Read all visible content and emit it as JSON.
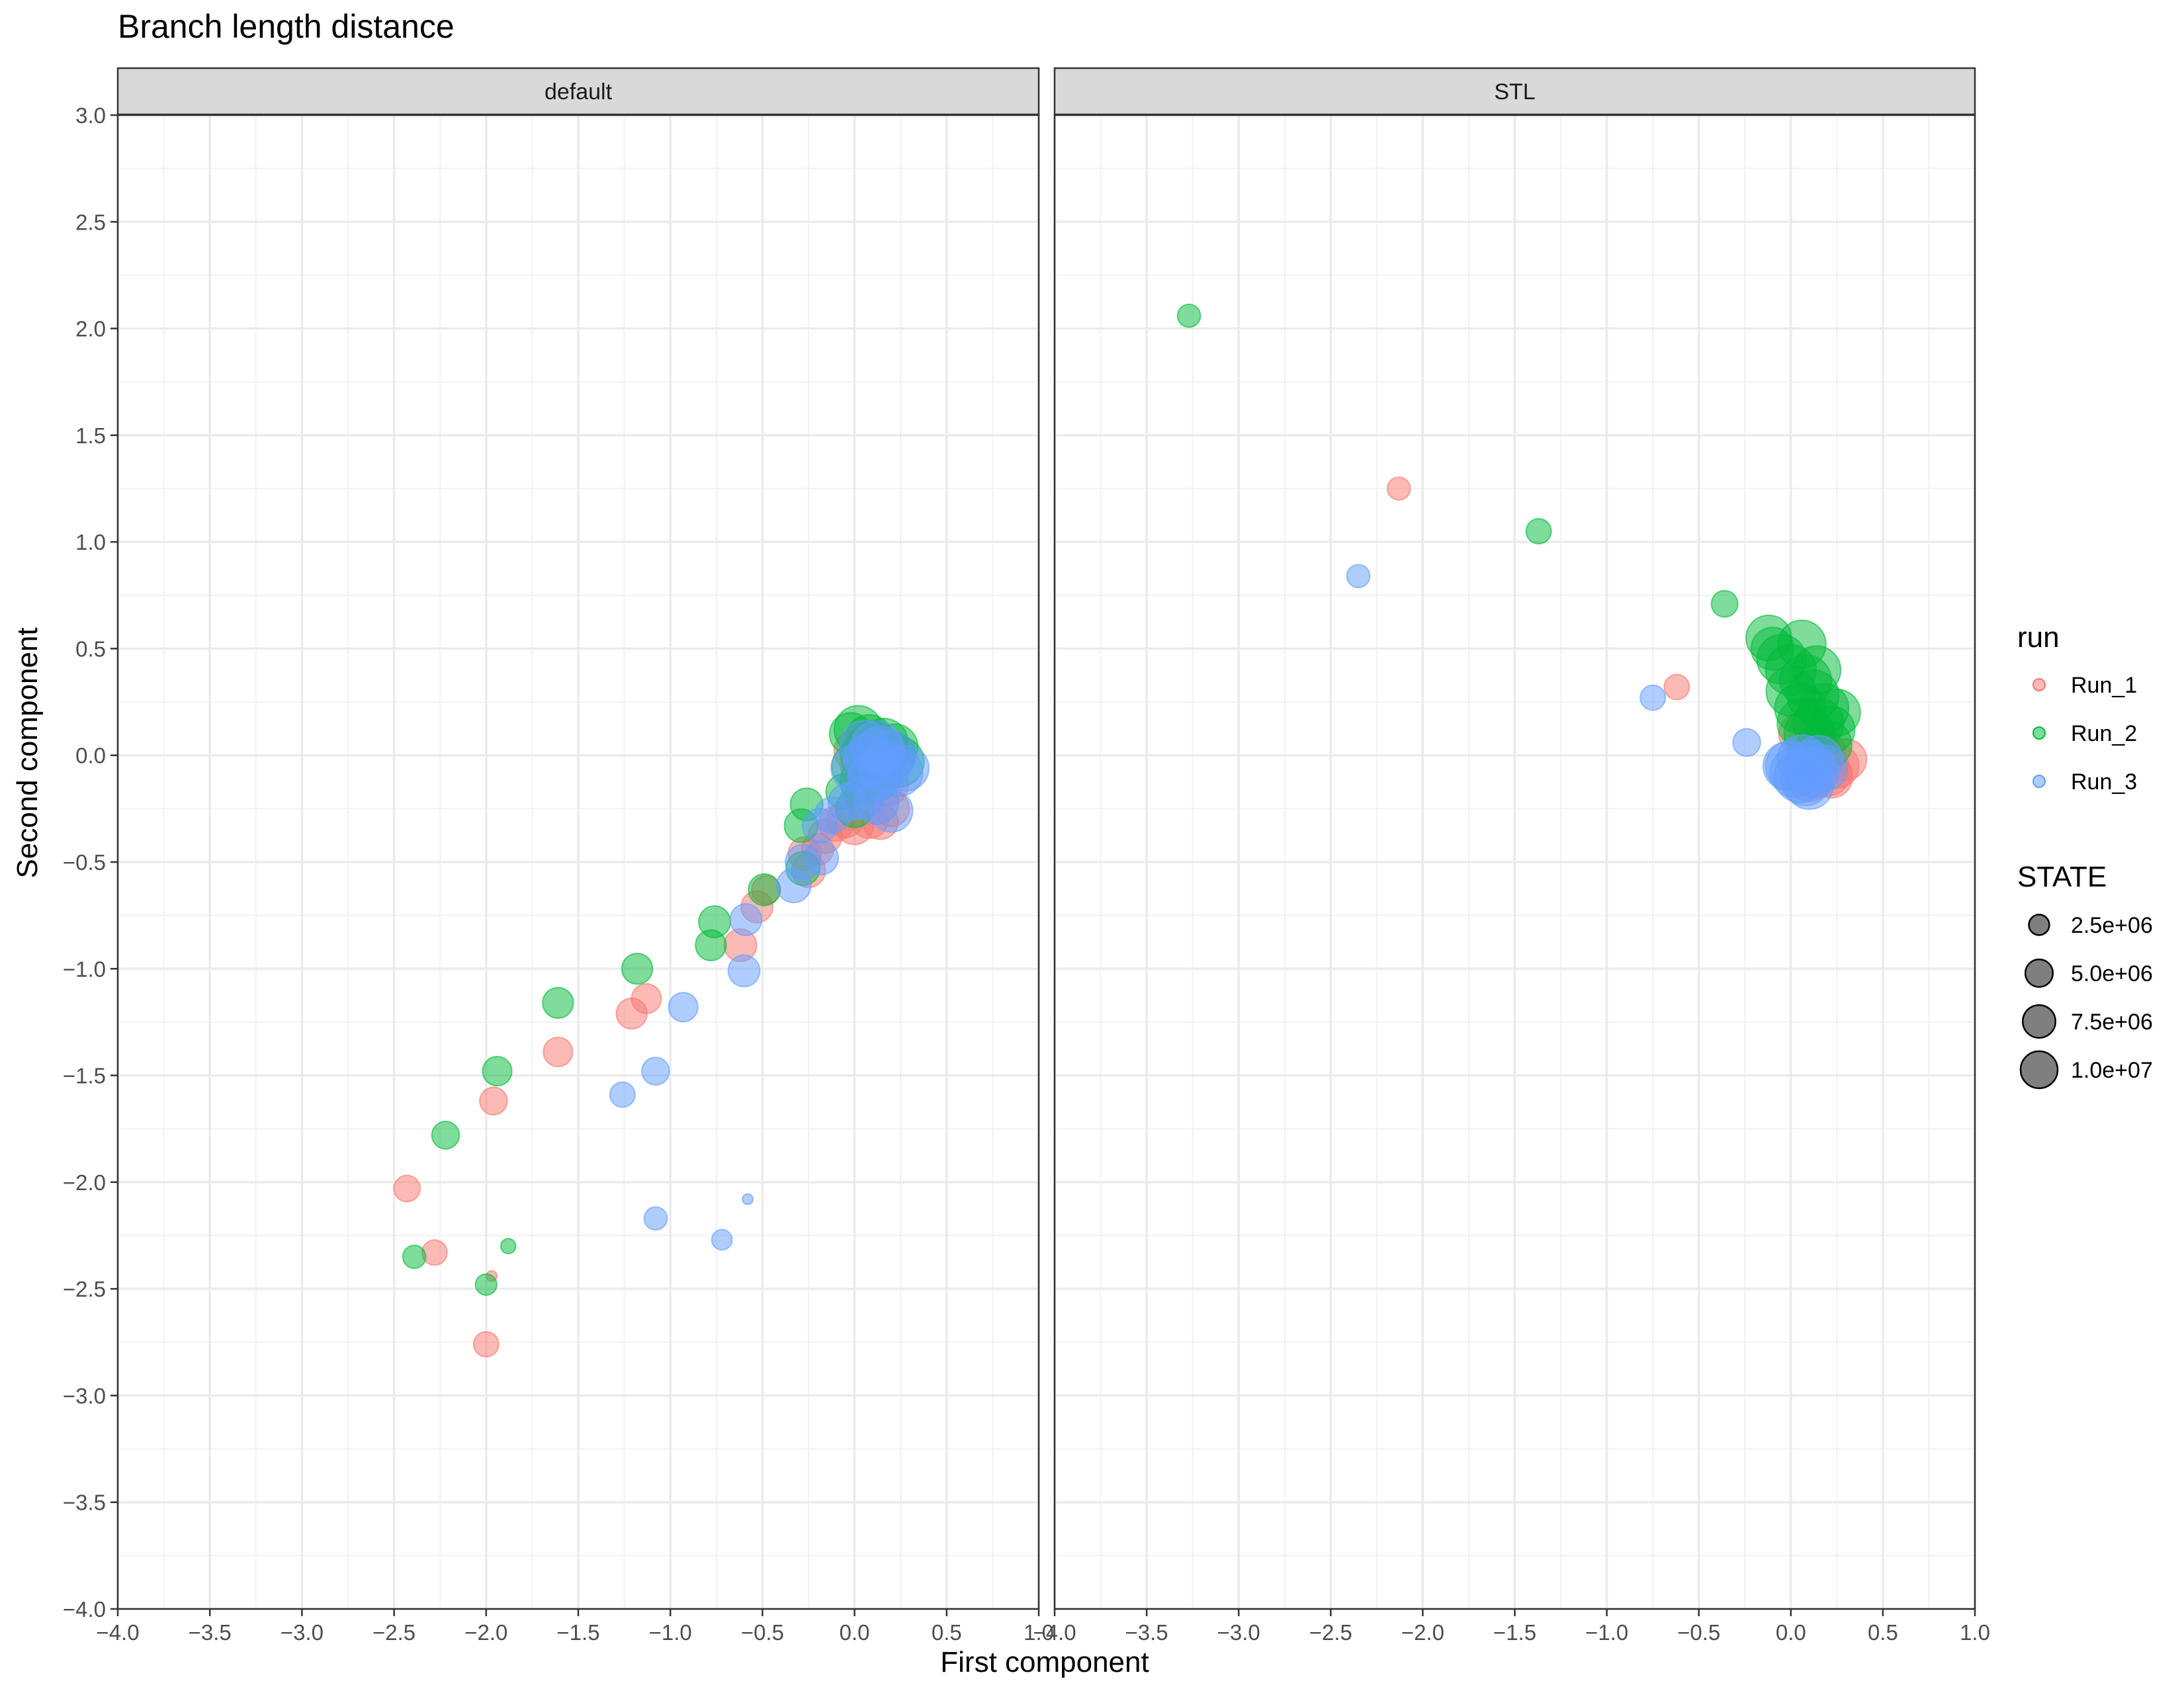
{
  "chart_data": {
    "type": "scatter",
    "title": "Branch length distance",
    "xlabel": "First component",
    "ylabel": "Second component",
    "xlim": [
      -4.0,
      1.0
    ],
    "ylim": [
      -4.0,
      3.0
    ],
    "x_ticks": [
      -4.0,
      -3.5,
      -3.0,
      -2.5,
      -2.0,
      -1.5,
      -1.0,
      -0.5,
      0.0,
      0.5,
      1.0
    ],
    "x_tick_labels": [
      "−4.0",
      "−3.5",
      "−3.0",
      "−2.5",
      "−2.0",
      "−1.5",
      "−1.0",
      "−0.5",
      "0.0",
      "0.5",
      "1.0"
    ],
    "y_ticks": [
      3.0,
      2.5,
      2.0,
      1.5,
      1.0,
      0.5,
      0.0,
      -0.5,
      -1.0,
      -1.5,
      -2.0,
      -2.5,
      -3.0,
      -3.5,
      -4.0
    ],
    "y_tick_labels": [
      "3.0",
      "2.5",
      "2.0",
      "1.5",
      "1.0",
      "0.5",
      "0.0",
      "−0.5",
      "−1.0",
      "−1.5",
      "−2.0",
      "−2.5",
      "−3.0",
      "−3.5",
      "−4.0"
    ],
    "grid": true,
    "colors": {
      "Run_1": "#F8766D",
      "Run_2": "#00BA38",
      "Run_3": "#619CFF"
    },
    "legend": {
      "run": {
        "title": "run",
        "entries": [
          "Run_1",
          "Run_2",
          "Run_3"
        ]
      },
      "size": {
        "title": "STATE",
        "values": [
          2500000,
          5000000,
          7500000,
          10000000
        ],
        "labels": [
          "2.5e+06",
          "5.0e+06",
          "7.5e+06",
          "1.0e+07"
        ]
      },
      "placement": "right"
    },
    "facets": [
      {
        "label": "default",
        "series": [
          {
            "name": "Run_1",
            "points": [
              [
                -2.43,
                -2.03,
                2000000
              ],
              [
                -2.28,
                -2.33,
                1800000
              ],
              [
                -1.97,
                -2.44,
                700000
              ],
              [
                -2.0,
                -2.76,
                1800000
              ],
              [
                -1.96,
                -1.62,
                2200000
              ],
              [
                -1.61,
                -1.39,
                2500000
              ],
              [
                -1.21,
                -1.21,
                2800000
              ],
              [
                -1.13,
                -1.14,
                2600000
              ],
              [
                -0.62,
                -0.89,
                3200000
              ],
              [
                -0.53,
                -0.71,
                3000000
              ],
              [
                -0.48,
                -0.63,
                2400000
              ],
              [
                -0.25,
                -0.54,
                3500000
              ],
              [
                -0.27,
                -0.46,
                3300000
              ],
              [
                -0.16,
                -0.38,
                3500000
              ],
              [
                -0.2,
                -0.44,
                3000000
              ],
              [
                -0.1,
                -0.32,
                3800000
              ],
              [
                -0.05,
                -0.3,
                4200000
              ],
              [
                0.0,
                -0.33,
                4500000
              ],
              [
                0.08,
                -0.3,
                4600000
              ],
              [
                0.14,
                -0.31,
                4000000
              ],
              [
                0.2,
                -0.25,
                4000000
              ],
              [
                0.0,
                0.02,
                5500000
              ],
              [
                0.04,
                -0.05,
                6000000
              ],
              [
                0.08,
                0.05,
                5000000
              ],
              [
                0.12,
                -0.08,
                6500000
              ],
              [
                0.16,
                -0.02,
                5500000
              ],
              [
                0.2,
                0.0,
                5000000
              ],
              [
                0.1,
                -0.12,
                6000000
              ],
              [
                0.18,
                -0.14,
                5500000
              ],
              [
                0.05,
                -0.2,
                5000000
              ]
            ]
          },
          {
            "name": "Run_2",
            "points": [
              [
                -2.39,
                -2.35,
                1500000
              ],
              [
                -2.0,
                -2.48,
                1300000
              ],
              [
                -1.88,
                -2.3,
                800000
              ],
              [
                -2.22,
                -1.78,
                2200000
              ],
              [
                -1.94,
                -1.48,
                2500000
              ],
              [
                -1.61,
                -1.16,
                2800000
              ],
              [
                -1.18,
                -1.0,
                2800000
              ],
              [
                -0.76,
                -0.78,
                3000000
              ],
              [
                -0.78,
                -0.89,
                2800000
              ],
              [
                -0.49,
                -0.63,
                3000000
              ],
              [
                -0.28,
                -0.53,
                3500000
              ],
              [
                -0.29,
                -0.33,
                3400000
              ],
              [
                -0.26,
                -0.23,
                3200000
              ],
              [
                -0.06,
                -0.17,
                3800000
              ],
              [
                0.0,
                -0.25,
                4500000
              ],
              [
                -0.02,
                0.1,
                6000000
              ],
              [
                0.02,
                0.12,
                8000000
              ],
              [
                0.06,
                0.0,
                9000000
              ],
              [
                0.1,
                0.04,
                9500000
              ],
              [
                0.14,
                -0.04,
                8500000
              ],
              [
                0.2,
                0.0,
                8000000
              ],
              [
                0.24,
                -0.03,
                9000000
              ],
              [
                0.0,
                -0.05,
                7000000
              ],
              [
                0.08,
                0.08,
                7500000
              ],
              [
                0.16,
                0.06,
                8000000
              ],
              [
                0.12,
                -0.1,
                8000000
              ],
              [
                0.04,
                -0.12,
                6500000
              ],
              [
                0.22,
                0.04,
                7000000
              ]
            ]
          },
          {
            "name": "Run_3",
            "points": [
              [
                -0.58,
                -2.08,
                700000
              ],
              [
                -0.72,
                -2.27,
                1200000
              ],
              [
                -1.08,
                -2.17,
                1500000
              ],
              [
                -1.26,
                -1.59,
                1800000
              ],
              [
                -1.08,
                -1.48,
                2200000
              ],
              [
                -0.93,
                -1.18,
                2500000
              ],
              [
                -0.6,
                -1.01,
                3000000
              ],
              [
                -0.59,
                -0.77,
                3000000
              ],
              [
                -0.33,
                -0.61,
                3600000
              ],
              [
                -0.28,
                -0.5,
                3800000
              ],
              [
                -0.18,
                -0.48,
                3500000
              ],
              [
                -0.19,
                -0.33,
                3600000
              ],
              [
                -0.12,
                -0.28,
                4000000
              ],
              [
                -0.04,
                -0.22,
                4500000
              ],
              [
                0.04,
                -0.2,
                6000000
              ],
              [
                0.12,
                -0.22,
                6500000
              ],
              [
                0.2,
                -0.26,
                6000000
              ],
              [
                0.05,
                0.05,
                8000000
              ],
              [
                0.08,
                -0.02,
                9000000
              ],
              [
                0.12,
                0.04,
                9500000
              ],
              [
                0.16,
                -0.06,
                9000000
              ],
              [
                0.2,
                0.0,
                8500000
              ],
              [
                0.1,
                -0.1,
                8500000
              ],
              [
                0.24,
                -0.08,
                8000000
              ],
              [
                0.28,
                -0.06,
                7000000
              ],
              [
                0.0,
                -0.06,
                7500000
              ],
              [
                0.14,
                0.02,
                8500000
              ]
            ]
          }
        ]
      },
      {
        "label": "STL",
        "series": [
          {
            "name": "Run_1",
            "points": [
              [
                -2.13,
                1.25,
                1500000
              ],
              [
                -0.62,
                0.32,
                1800000
              ],
              [
                0.05,
                0.1,
                6000000
              ],
              [
                0.1,
                -0.02,
                7000000
              ],
              [
                0.15,
                0.05,
                6000000
              ],
              [
                0.2,
                -0.08,
                7500000
              ],
              [
                0.25,
                -0.05,
                6500000
              ],
              [
                0.3,
                -0.02,
                5500000
              ],
              [
                0.22,
                -0.1,
                6000000
              ],
              [
                0.1,
                -0.12,
                5500000
              ],
              [
                0.18,
                0.02,
                6000000
              ]
            ]
          },
          {
            "name": "Run_2",
            "points": [
              [
                -3.27,
                2.06,
                1500000
              ],
              [
                -1.37,
                1.05,
                1800000
              ],
              [
                -0.36,
                0.71,
                2000000
              ],
              [
                -0.1,
                0.5,
                6000000
              ],
              [
                -0.12,
                0.55,
                7000000
              ],
              [
                0.06,
                0.52,
                8000000
              ],
              [
                0.0,
                0.4,
                9000000
              ],
              [
                0.08,
                0.35,
                9500000
              ],
              [
                0.12,
                0.28,
                9500000
              ],
              [
                0.05,
                0.22,
                9000000
              ],
              [
                0.15,
                0.15,
                9000000
              ],
              [
                0.18,
                0.22,
                8500000
              ],
              [
                0.1,
                0.1,
                9000000
              ],
              [
                0.2,
                0.05,
                8000000
              ],
              [
                0.25,
                0.2,
                7500000
              ],
              [
                0.0,
                0.3,
                8500000
              ],
              [
                -0.05,
                0.45,
                8500000
              ],
              [
                0.14,
                0.4,
                8000000
              ],
              [
                0.22,
                0.12,
                7500000
              ],
              [
                0.06,
                0.15,
                8500000
              ]
            ]
          },
          {
            "name": "Run_3",
            "points": [
              [
                -2.35,
                0.84,
                1500000
              ],
              [
                -0.75,
                0.27,
                1800000
              ],
              [
                -0.24,
                0.06,
                2200000
              ],
              [
                0.0,
                -0.05,
                9000000
              ],
              [
                0.05,
                -0.1,
                9500000
              ],
              [
                0.1,
                -0.05,
                9000000
              ],
              [
                0.08,
                -0.12,
                8500000
              ],
              [
                0.12,
                -0.08,
                9000000
              ],
              [
                0.15,
                -0.02,
                8000000
              ],
              [
                0.02,
                -0.08,
                8500000
              ],
              [
                -0.02,
                -0.05,
                8000000
              ],
              [
                0.18,
                -0.06,
                7500000
              ],
              [
                0.1,
                -0.14,
                8000000
              ],
              [
                0.06,
                -0.02,
                8500000
              ]
            ]
          }
        ]
      }
    ]
  }
}
